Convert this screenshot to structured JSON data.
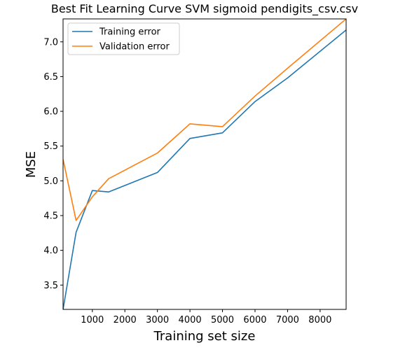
{
  "chart_data": {
    "type": "line",
    "title": "Best Fit Learning Curve SVM sigmoid pendigits_csv.csv",
    "xlabel": "Training set size",
    "ylabel": "MSE",
    "xlim": [
      100,
      8800
    ],
    "ylim": [
      3.15,
      7.33
    ],
    "xticks": [
      1000,
      2000,
      3000,
      4000,
      5000,
      6000,
      7000,
      8000
    ],
    "yticks": [
      3.5,
      4.0,
      4.5,
      5.0,
      5.5,
      6.0,
      6.5,
      7.0
    ],
    "xtick_labels": [
      "1000",
      "2000",
      "3000",
      "4000",
      "5000",
      "6000",
      "7000",
      "8000"
    ],
    "ytick_labels": [
      "3.5",
      "4.0",
      "4.5",
      "5.0",
      "5.5",
      "6.0",
      "6.5",
      "7.0"
    ],
    "legend_position": "upper-left",
    "grid": false,
    "series": [
      {
        "name": "Training error",
        "color": "#1f77b4",
        "x": [
          100,
          500,
          1000,
          1500,
          3000,
          4000,
          5000,
          6000,
          7000,
          8800
        ],
        "y": [
          3.15,
          4.26,
          4.86,
          4.84,
          5.12,
          5.61,
          5.69,
          6.14,
          6.48,
          7.17
        ]
      },
      {
        "name": "Validation error",
        "color": "#ff7f0e",
        "x": [
          100,
          500,
          1000,
          1500,
          3000,
          4000,
          5000,
          6000,
          7000,
          8800
        ],
        "y": [
          5.31,
          4.43,
          4.77,
          5.03,
          5.4,
          5.82,
          5.78,
          6.22,
          6.62,
          7.33
        ]
      }
    ]
  }
}
